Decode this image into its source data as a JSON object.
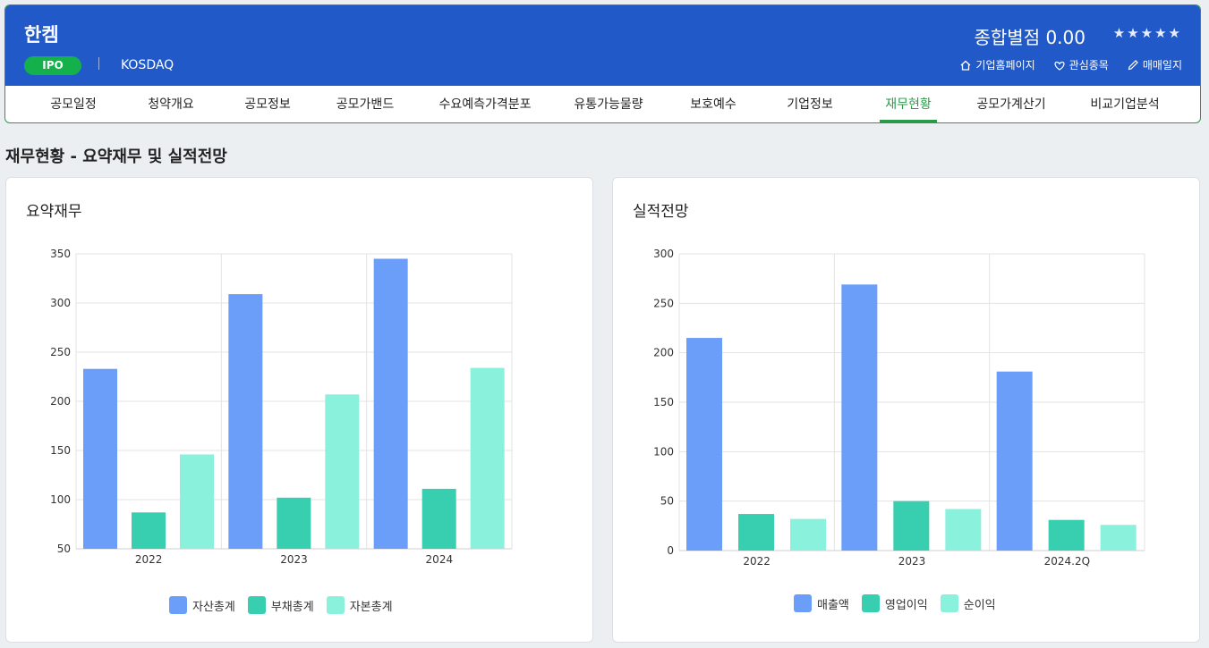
{
  "header": {
    "company_name": "한켐",
    "badge": "IPO",
    "market": "KOSDAQ",
    "score_label": "종합별점 0.00",
    "stars": "★★★★★",
    "links": [
      {
        "label": "기업홈페이지",
        "icon": "home-icon"
      },
      {
        "label": "관심종목",
        "icon": "heart-icon"
      },
      {
        "label": "매매일지",
        "icon": "pencil-icon"
      }
    ]
  },
  "tabs": [
    {
      "label": "공모일정"
    },
    {
      "label": "청약개요"
    },
    {
      "label": "공모정보"
    },
    {
      "label": "공모가밴드"
    },
    {
      "label": "수요예측가격분포"
    },
    {
      "label": "유통가능물량"
    },
    {
      "label": "보호예수"
    },
    {
      "label": "기업정보"
    },
    {
      "label": "재무현황",
      "active": true
    },
    {
      "label": "공모가계산기"
    },
    {
      "label": "비교기업분석"
    }
  ],
  "section_title": "재무현황 - 요약재무 및 실적전망",
  "panels": {
    "summary": {
      "title": "요약재무"
    },
    "outlook": {
      "title": "실적전망"
    }
  },
  "colors": {
    "header_bg": "#2159c8",
    "accent_green": "#2a9a4a",
    "series1": "#6b9ef8",
    "series2": "#38cfb0",
    "series3": "#8af2dc"
  },
  "chart_data": [
    {
      "type": "bar",
      "categories": [
        "2022",
        "2023",
        "2024"
      ],
      "series": [
        {
          "name": "자산총계",
          "values": [
            233,
            309,
            345
          ]
        },
        {
          "name": "부채총계",
          "values": [
            87,
            102,
            111
          ]
        },
        {
          "name": "자본총계",
          "values": [
            146,
            207,
            234
          ]
        }
      ],
      "ylim": [
        50,
        350
      ],
      "yticks": [
        50,
        100,
        150,
        200,
        250,
        300,
        350
      ],
      "grid": true,
      "legend": "bottom"
    },
    {
      "type": "bar",
      "categories": [
        "2022",
        "2023",
        "2024.2Q"
      ],
      "series": [
        {
          "name": "매출액",
          "values": [
            215,
            269,
            181
          ]
        },
        {
          "name": "영업이익",
          "values": [
            37,
            50,
            31
          ]
        },
        {
          "name": "순이익",
          "values": [
            32,
            42,
            26
          ]
        }
      ],
      "ylim": [
        0,
        300
      ],
      "yticks": [
        0,
        50,
        100,
        150,
        200,
        250,
        300
      ],
      "grid": true,
      "legend": "bottom"
    }
  ]
}
